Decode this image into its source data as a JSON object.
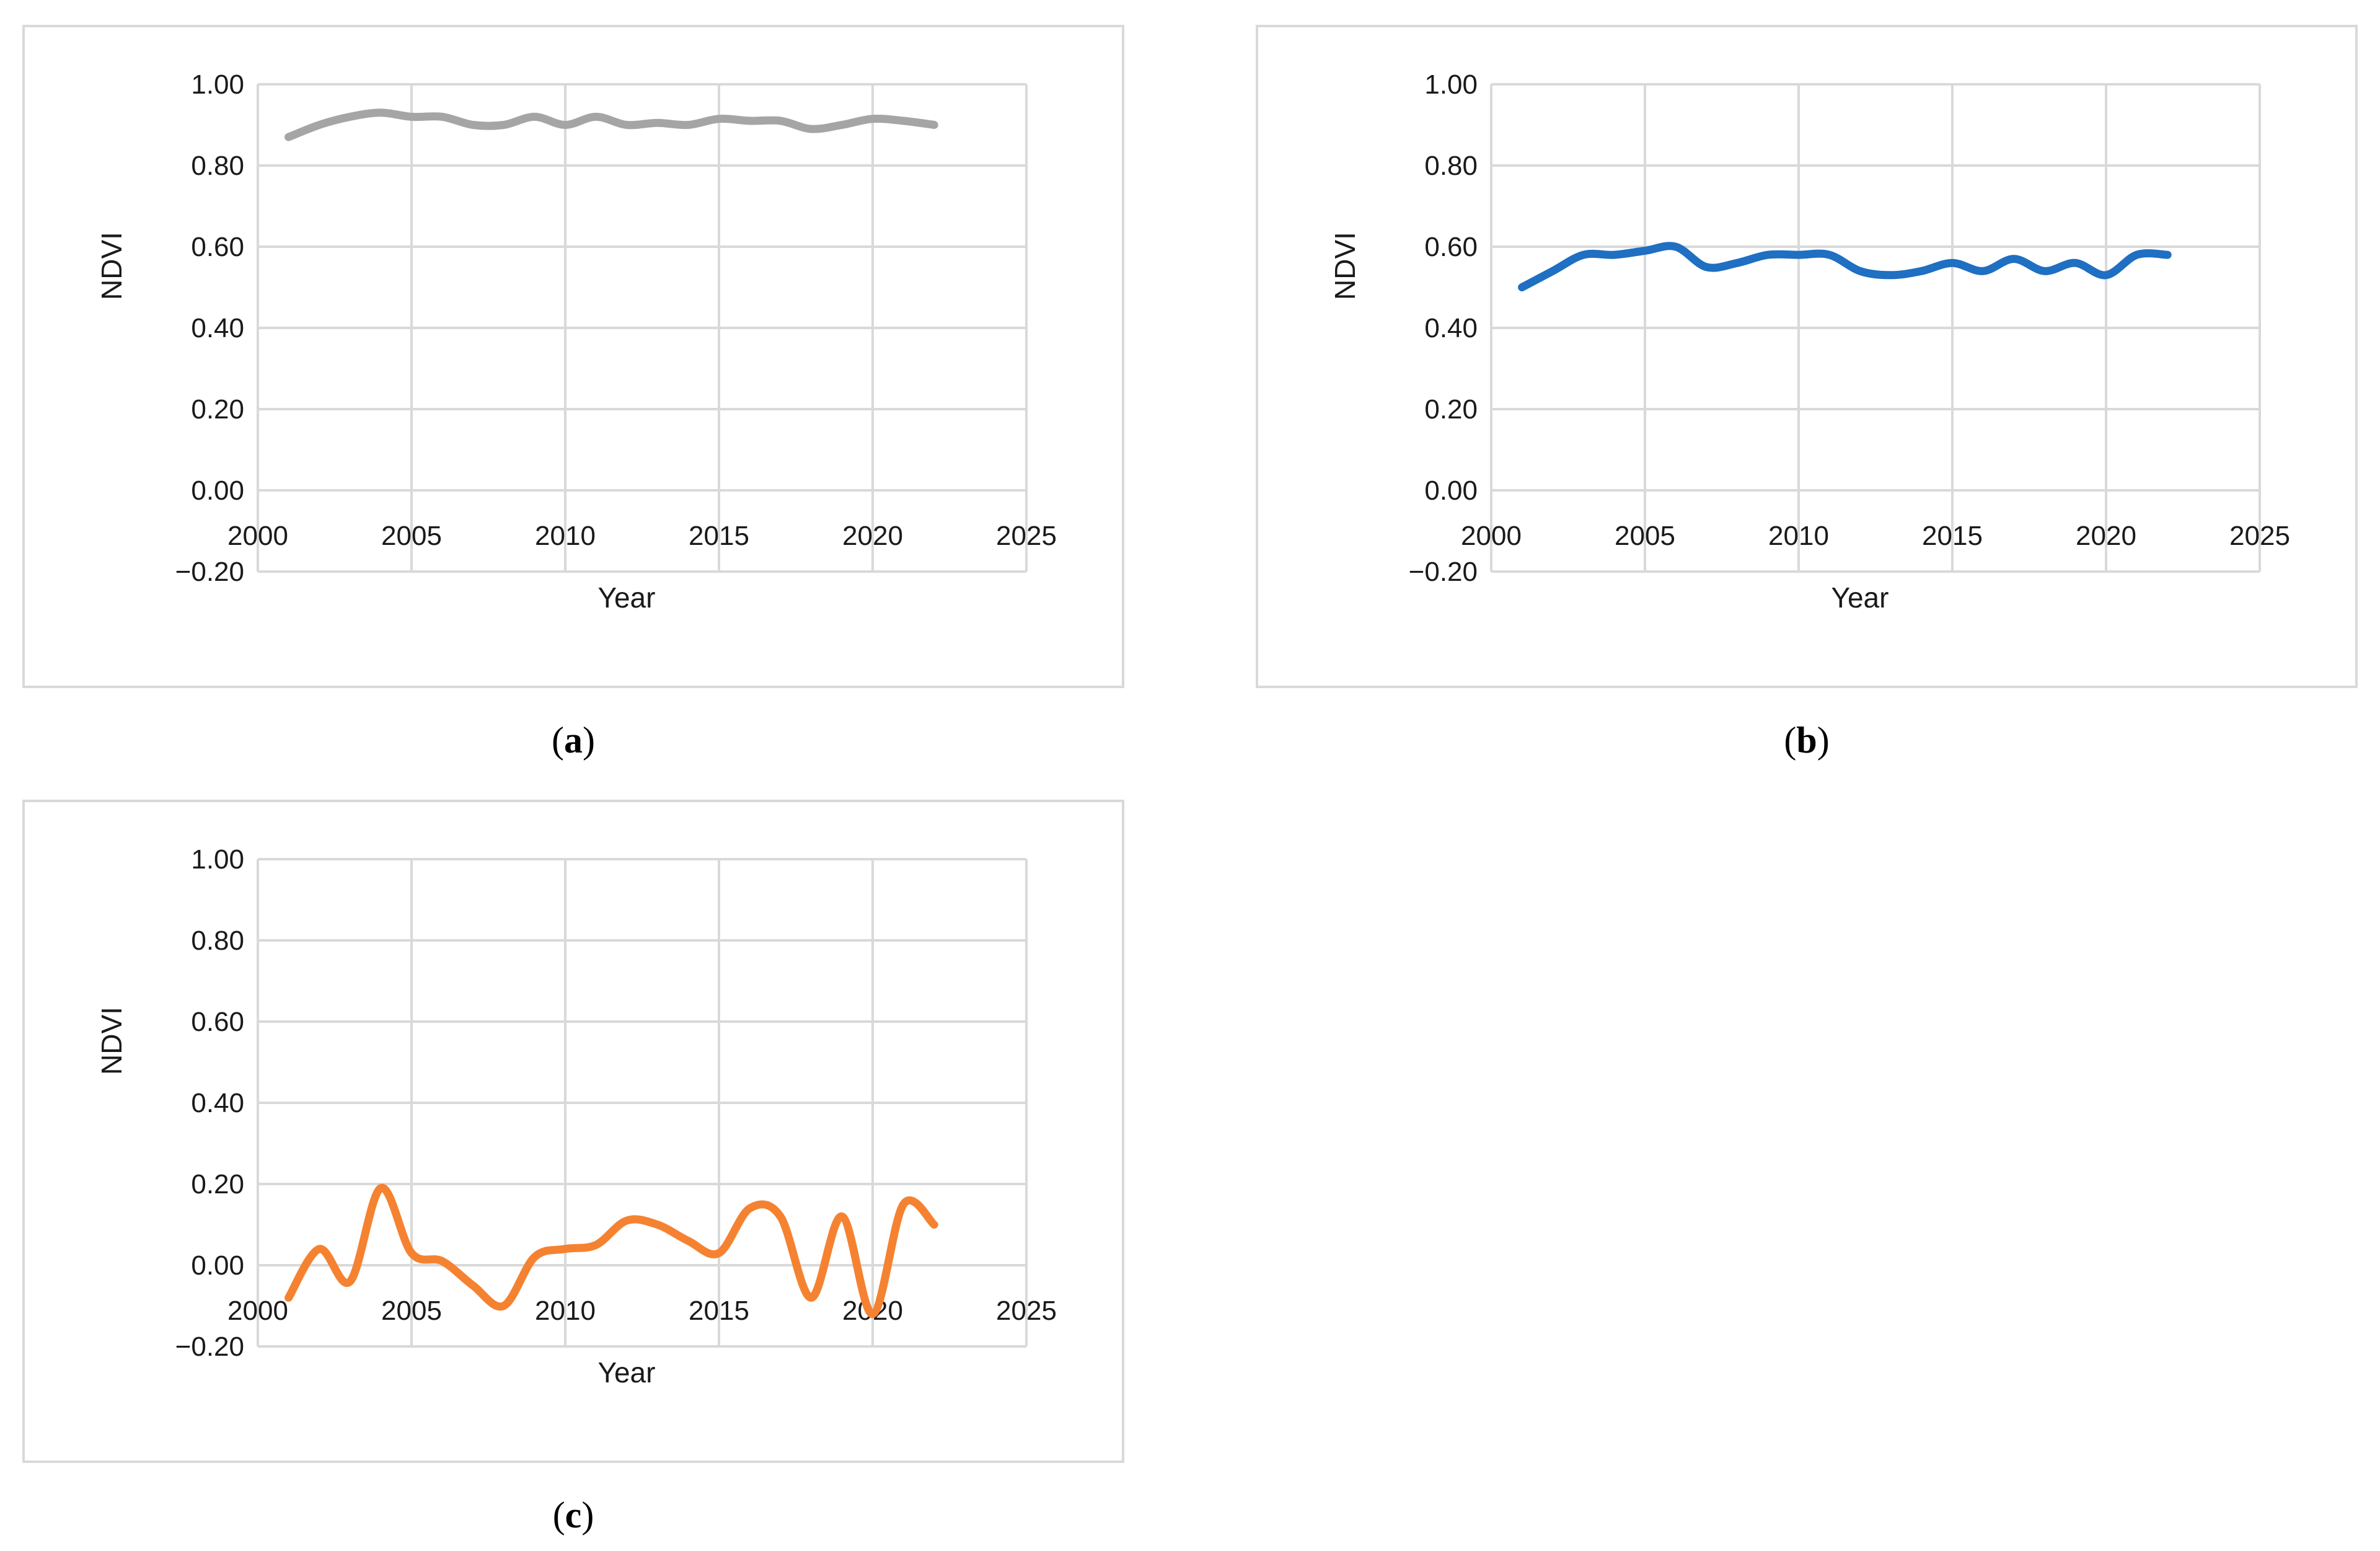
{
  "panels": [
    {
      "caption_open": "(",
      "caption_letter": "a",
      "caption_close": ")",
      "chart_data": {
        "type": "line",
        "xlabel": "Year",
        "ylabel": "NDVI",
        "xlim": [
          2000,
          2025
        ],
        "ylim": [
          -0.2,
          1.0
        ],
        "xticks": [
          "2000",
          "2005",
          "2010",
          "2015",
          "2020",
          "2025"
        ],
        "yticks": [
          "1.00",
          "0.80",
          "0.60",
          "0.40",
          "0.20",
          "0.00",
          "−0.20"
        ],
        "grid": true,
        "color": "#a5a5a5",
        "x": [
          2001,
          2002,
          2003,
          2004,
          2005,
          2006,
          2007,
          2008,
          2009,
          2010,
          2011,
          2012,
          2013,
          2014,
          2015,
          2016,
          2017,
          2018,
          2019,
          2020,
          2021,
          2022
        ],
        "series": [
          {
            "values": [
              0.87,
              0.9,
              0.92,
              0.93,
              0.92,
              0.92,
              0.9,
              0.9,
              0.92,
              0.9,
              0.92,
              0.9,
              0.905,
              0.9,
              0.915,
              0.91,
              0.91,
              0.89,
              0.9,
              0.915,
              0.91,
              0.9
            ]
          }
        ]
      }
    },
    {
      "caption_open": "(",
      "caption_letter": "b",
      "caption_close": ")",
      "chart_data": {
        "type": "line",
        "xlabel": "Year",
        "ylabel": "NDVI",
        "xlim": [
          2000,
          2025
        ],
        "ylim": [
          -0.2,
          1.0
        ],
        "xticks": [
          "2000",
          "2005",
          "2010",
          "2015",
          "2020",
          "2025"
        ],
        "yticks": [
          "1.00",
          "0.80",
          "0.60",
          "0.40",
          "0.20",
          "0.00",
          "−0.20"
        ],
        "grid": true,
        "color": "#1f6fc2",
        "x": [
          2001,
          2002,
          2003,
          2004,
          2005,
          2006,
          2007,
          2008,
          2009,
          2010,
          2011,
          2012,
          2013,
          2014,
          2015,
          2016,
          2017,
          2018,
          2019,
          2020,
          2021,
          2022
        ],
        "series": [
          {
            "values": [
              0.5,
              0.54,
              0.58,
              0.58,
              0.59,
              0.6,
              0.55,
              0.56,
              0.58,
              0.58,
              0.58,
              0.54,
              0.53,
              0.54,
              0.56,
              0.54,
              0.57,
              0.54,
              0.56,
              0.53,
              0.58,
              0.58
            ]
          }
        ]
      }
    },
    {
      "caption_open": "(",
      "caption_letter": "c",
      "caption_close": ")",
      "chart_data": {
        "type": "line",
        "xlabel": "Year",
        "ylabel": "NDVI",
        "xlim": [
          2000,
          2025
        ],
        "ylim": [
          -0.2,
          1.0
        ],
        "xticks": [
          "2000",
          "2005",
          "2010",
          "2015",
          "2020",
          "2025"
        ],
        "yticks": [
          "1.00",
          "0.80",
          "0.60",
          "0.40",
          "0.20",
          "0.00",
          "−0.20"
        ],
        "grid": true,
        "color": "#f58231",
        "x": [
          2001,
          2002,
          2003,
          2004,
          2005,
          2006,
          2007,
          2008,
          2009,
          2010,
          2011,
          2012,
          2013,
          2014,
          2015,
          2016,
          2017,
          2018,
          2019,
          2020,
          2021,
          2022
        ],
        "series": [
          {
            "values": [
              -0.08,
              0.04,
              -0.04,
              0.19,
              0.03,
              0.01,
              -0.05,
              -0.1,
              0.02,
              0.04,
              0.05,
              0.11,
              0.1,
              0.06,
              0.03,
              0.14,
              0.12,
              -0.08,
              0.12,
              -0.12,
              0.15,
              0.1
            ]
          }
        ]
      }
    }
  ]
}
